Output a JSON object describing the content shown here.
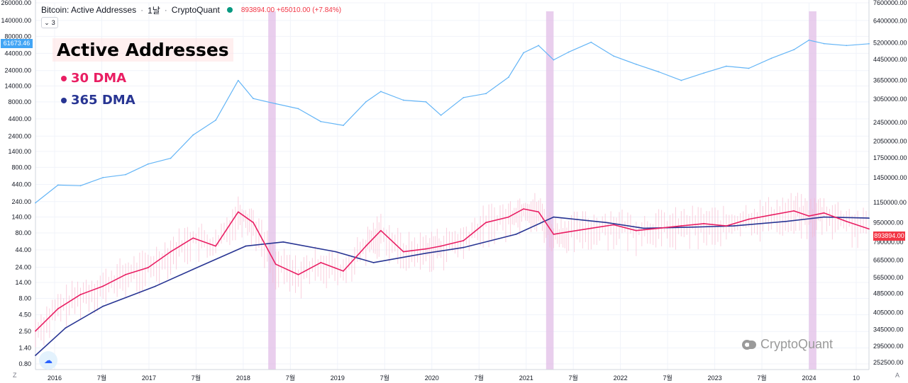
{
  "header": {
    "title": "Bitcoin: Active Addresses",
    "sep1": "·",
    "interval": "1날",
    "sep2": "·",
    "source": "CryptoQuant",
    "price_change": "893894.00 +65010.00 (+7.84%)",
    "status_color": "#089981"
  },
  "collapse_button": {
    "label": "3"
  },
  "legend": {
    "title": "Active Addresses",
    "items": [
      {
        "label": "30 DMA",
        "color": "#e91e63"
      },
      {
        "label": "365 DMA",
        "color": "#283593"
      }
    ]
  },
  "price_tags": {
    "left": "61673.46",
    "right": "893894.00"
  },
  "watermark": {
    "text": "CryptoQuant"
  },
  "corner_left": "Z",
  "corner_right": "A",
  "colors": {
    "price_line": "#64b5f6",
    "dma30": "#e91e63",
    "dma365": "#283593",
    "daily": "#f8bbd0",
    "highlight": "#e1bee7"
  },
  "chart_data": {
    "type": "line",
    "title": "Bitcoin: Active Addresses",
    "left_axis": {
      "scale": "log",
      "ticks": [
        "260000.00",
        "140000.00",
        "80000.00",
        "44000.00",
        "24000.00",
        "14000.00",
        "8000.00",
        "4400.00",
        "2400.00",
        "1400.00",
        "800.00",
        "440.00",
        "240.00",
        "140.00",
        "80.00",
        "44.00",
        "24.00",
        "14.00",
        "8.00",
        "4.50",
        "2.50",
        "1.40",
        "0.80"
      ]
    },
    "right_axis": {
      "scale": "log",
      "ticks": [
        "7600000.00",
        "6400000.00",
        "5200000.00",
        "4450000.00",
        "3650000.00",
        "3050000.00",
        "2450000.00",
        "2050000.00",
        "1750000.00",
        "1450000.00",
        "1150000.00",
        "950000.00",
        "790000.00",
        "665000.00",
        "565000.00",
        "485000.00",
        "405000.00",
        "345000.00",
        "295000.00",
        "252500.00"
      ]
    },
    "x_ticks": [
      "2016",
      "7월",
      "2017",
      "7월",
      "2018",
      "7월",
      "2019",
      "7월",
      "2020",
      "7월",
      "2021",
      "7월",
      "2022",
      "7월",
      "2023",
      "7월",
      "2024",
      "10"
    ],
    "x_range": [
      "2015-09",
      "2024-12"
    ],
    "highlight_periods": [
      [
        "2018-04",
        "2018-05"
      ],
      [
        "2021-05",
        "2021-06"
      ],
      [
        "2024-04",
        "2024-05"
      ]
    ],
    "series": [
      {
        "name": "Bitcoin price",
        "axis": "left",
        "x": [
          "2015-09",
          "2015-12",
          "2016-03",
          "2016-06",
          "2016-09",
          "2016-12",
          "2017-03",
          "2017-06",
          "2017-09",
          "2017-12",
          "2018-02",
          "2018-05",
          "2018-08",
          "2018-11",
          "2019-02",
          "2019-05",
          "2019-07",
          "2019-10",
          "2020-01",
          "2020-03",
          "2020-06",
          "2020-09",
          "2020-12",
          "2021-02",
          "2021-04",
          "2021-06",
          "2021-08",
          "2021-11",
          "2022-02",
          "2022-05",
          "2022-08",
          "2022-11",
          "2023-02",
          "2023-05",
          "2023-08",
          "2023-11",
          "2024-02",
          "2024-04",
          "2024-06",
          "2024-09",
          "2024-12"
        ],
        "values": [
          230,
          430,
          420,
          560,
          620,
          900,
          1100,
          2500,
          4200,
          17000,
          9000,
          7500,
          6300,
          4000,
          3500,
          8000,
          11500,
          8500,
          8000,
          5000,
          9300,
          10700,
          19000,
          45000,
          58000,
          35000,
          46000,
          65000,
          40000,
          30000,
          23000,
          17000,
          22000,
          28000,
          26000,
          37000,
          50000,
          70000,
          62000,
          58000,
          61673.46
        ]
      },
      {
        "name": "30 DMA",
        "axis": "right",
        "x": [
          "2015-09",
          "2015-12",
          "2016-03",
          "2016-06",
          "2016-09",
          "2016-12",
          "2017-03",
          "2017-06",
          "2017-09",
          "2017-12",
          "2018-02",
          "2018-05",
          "2018-08",
          "2018-11",
          "2019-02",
          "2019-05",
          "2019-07",
          "2019-10",
          "2020-01",
          "2020-03",
          "2020-06",
          "2020-09",
          "2020-12",
          "2021-02",
          "2021-04",
          "2021-06",
          "2021-08",
          "2021-11",
          "2022-02",
          "2022-05",
          "2022-08",
          "2022-11",
          "2023-02",
          "2023-05",
          "2023-08",
          "2023-11",
          "2024-02",
          "2024-04",
          "2024-06",
          "2024-09",
          "2024-12"
        ],
        "values": [
          340000,
          420000,
          480000,
          520000,
          580000,
          620000,
          720000,
          820000,
          760000,
          1050000,
          950000,
          640000,
          580000,
          650000,
          600000,
          760000,
          880000,
          720000,
          740000,
          760000,
          800000,
          950000,
          1000000,
          1080000,
          1050000,
          850000,
          870000,
          900000,
          930000,
          880000,
          900000,
          920000,
          940000,
          920000,
          980000,
          1020000,
          1060000,
          1010000,
          1040000,
          960000,
          893894
        ]
      },
      {
        "name": "365 DMA",
        "axis": "right",
        "x": [
          "2015-09",
          "2016-01",
          "2016-06",
          "2017-01",
          "2017-06",
          "2018-01",
          "2018-06",
          "2019-01",
          "2019-06",
          "2020-01",
          "2020-06",
          "2021-01",
          "2021-06",
          "2022-01",
          "2022-06",
          "2023-01",
          "2023-06",
          "2024-01",
          "2024-06",
          "2024-12"
        ],
        "values": [
          270000,
          350000,
          430000,
          520000,
          610000,
          760000,
          790000,
          720000,
          650000,
          710000,
          750000,
          850000,
          1000000,
          950000,
          900000,
          910000,
          920000,
          960000,
          1000000,
          990000
        ]
      }
    ]
  }
}
